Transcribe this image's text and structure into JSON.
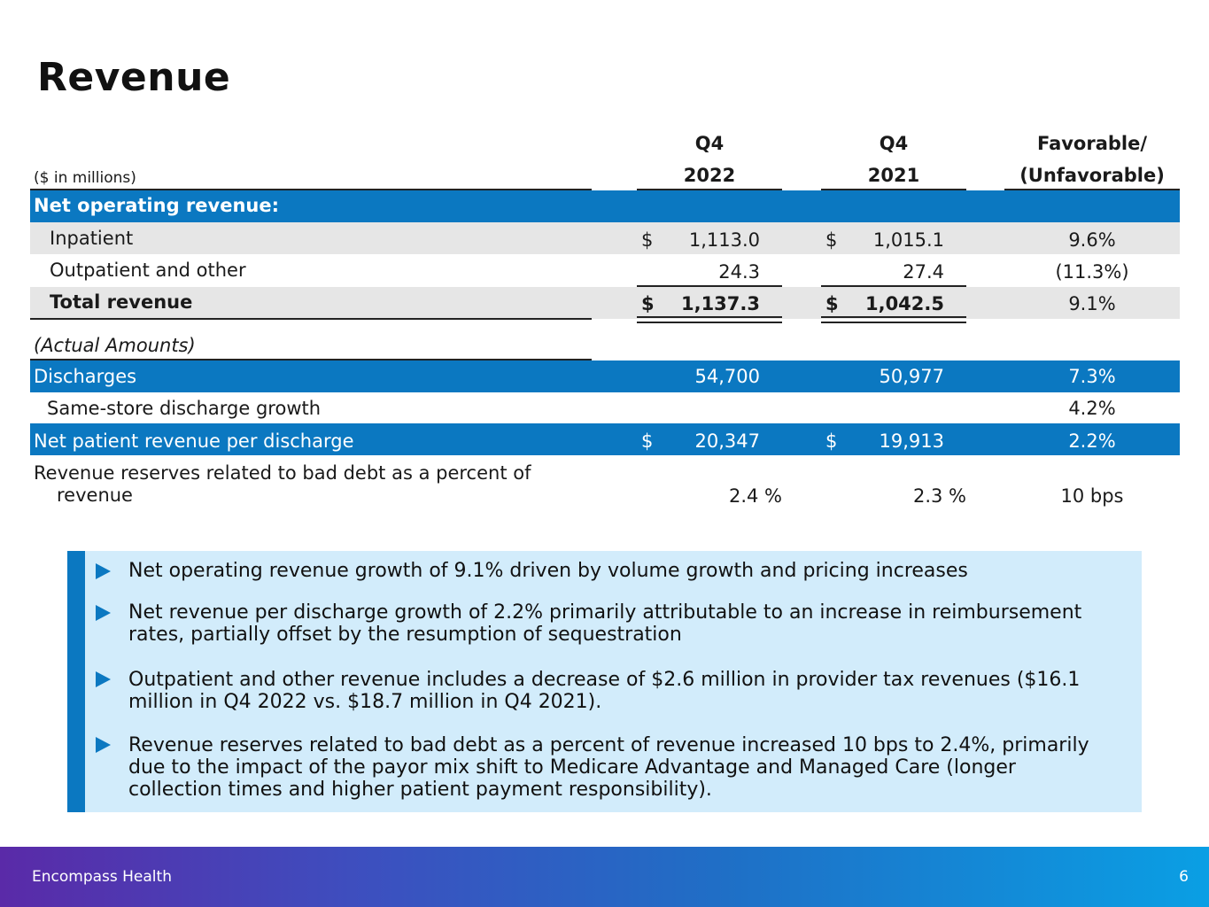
{
  "title": "Revenue",
  "table": {
    "units_label": "($ in millions)",
    "col1": {
      "line1": "Q4",
      "line2": "2022"
    },
    "col2": {
      "line1": "Q4",
      "line2": "2021"
    },
    "col3": {
      "line1": "Favorable/",
      "line2": "(Unfavorable)"
    },
    "section_header": "Net operating revenue:",
    "rows": {
      "inpatient": {
        "label": "Inpatient",
        "cur_sym": "$",
        "v1": "1,113.0",
        "prev_sym": "$",
        "v2": "1,015.1",
        "chg": "9.6%"
      },
      "outpatient": {
        "label": "Outpatient and other",
        "v1": "24.3",
        "v2": "27.4",
        "chg": "(11.3%)"
      },
      "total": {
        "label": "Total revenue",
        "cur_sym": "$",
        "v1": "1,137.3",
        "prev_sym": "$",
        "v2": "1,042.5",
        "chg": "9.1%"
      }
    },
    "actual_label": "(Actual Amounts)",
    "discharges": {
      "label": "Discharges",
      "v1": "54,700",
      "v2": "50,977",
      "chg": "7.3%"
    },
    "same_store": {
      "label": "Same-store discharge growth",
      "chg": "4.2%"
    },
    "npr": {
      "label": "Net patient revenue per discharge",
      "cur_sym": "$",
      "v1": "20,347",
      "prev_sym": "$",
      "v2": "19,913",
      "chg": "2.2%"
    },
    "reserves": {
      "label_line1": "Revenue reserves related to bad debt as a percent of",
      "label_line2": "revenue",
      "v1": "2.4 %",
      "v2": "2.3 %",
      "chg": "10 bps"
    }
  },
  "bullets": [
    {
      "line1": "Net operating revenue growth of 9.1% driven by volume growth and pricing increases"
    },
    {
      "line1": "Net revenue per discharge growth of 2.2% primarily attributable to an increase in reimbursement",
      "line2": "rates, partially offset by the resumption of sequestration"
    },
    {
      "line1": "Outpatient and other revenue includes a decrease of $2.6 million in provider tax revenues ($16.1",
      "line2": "million in Q4 2022 vs. $18.7 million in Q4 2021)."
    },
    {
      "line1": "Revenue reserves related to bad debt as a percent of revenue increased 10 bps to 2.4%, primarily",
      "line2": "due to the impact of the payor mix shift to Medicare Advantage and Managed Care (longer",
      "line3": "collection times and higher patient payment responsibility)."
    }
  ],
  "footer": {
    "company": "Encompass Health",
    "page": "6"
  },
  "colors": {
    "accent": "#0b78c1",
    "callout_bg": "#d2ecfb",
    "gray_row": "#e6e6e6"
  }
}
